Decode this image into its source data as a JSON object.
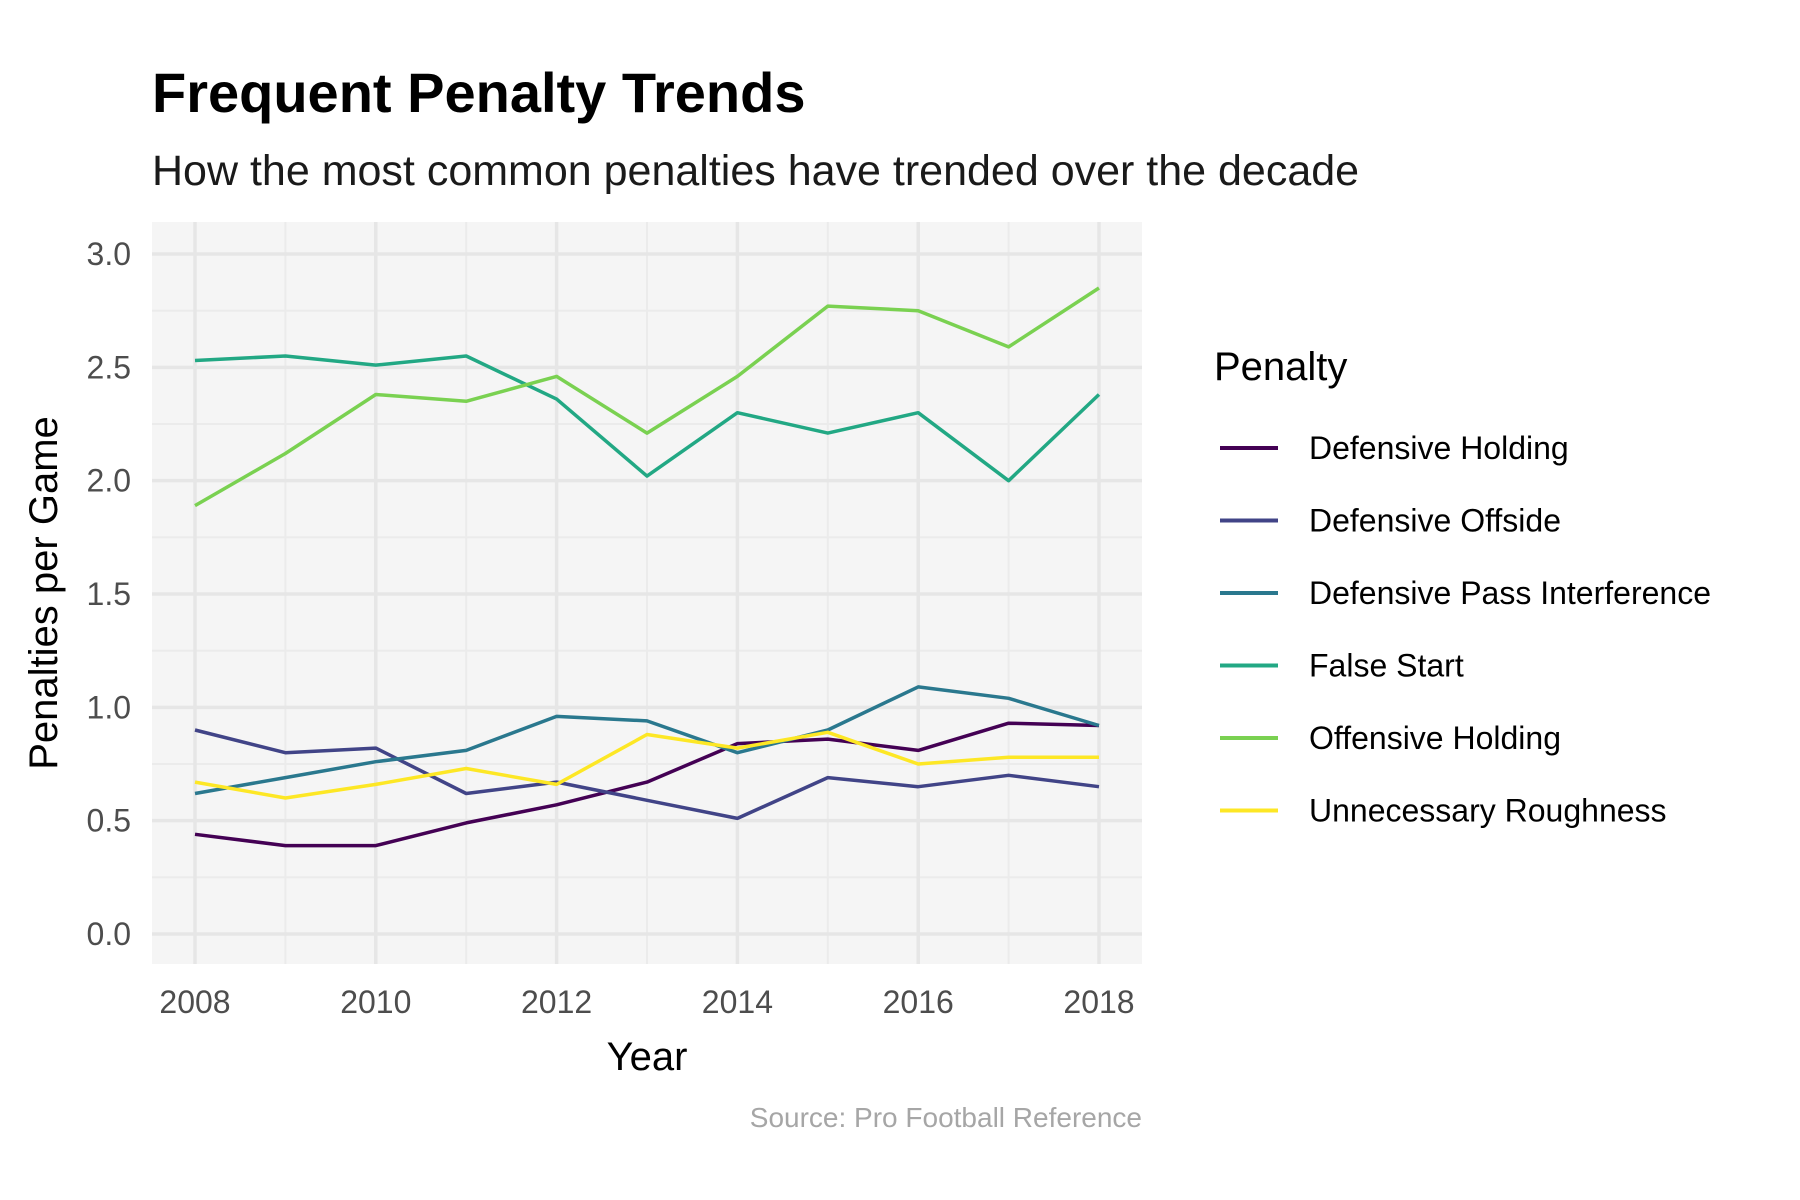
{
  "chart_data": {
    "type": "line",
    "title": "Frequent Penalty Trends",
    "subtitle": "How the most common penalties have trended over the decade",
    "xlabel": "Year",
    "ylabel": "Penalties per Game",
    "caption": "Source: Pro Football Reference",
    "legend_title": "Penalty",
    "legend_position": "right",
    "grid": true,
    "x": [
      2008,
      2009,
      2010,
      2011,
      2012,
      2013,
      2014,
      2015,
      2016,
      2017,
      2018
    ],
    "xlim": [
      2008,
      2018
    ],
    "ylim": [
      0,
      3
    ],
    "x_ticks": [
      "2008",
      "2010",
      "2012",
      "2014",
      "2016",
      "2018"
    ],
    "y_ticks": [
      "0.0",
      "0.5",
      "1.0",
      "1.5",
      "2.0",
      "2.5",
      "3.0"
    ],
    "series": [
      {
        "name": "Defensive Holding",
        "color": "#440154",
        "values": [
          0.44,
          0.39,
          0.39,
          0.49,
          0.57,
          0.67,
          0.84,
          0.86,
          0.81,
          0.93,
          0.92
        ]
      },
      {
        "name": "Defensive Offside",
        "color": "#414487",
        "values": [
          0.9,
          0.8,
          0.82,
          0.62,
          0.67,
          0.59,
          0.51,
          0.69,
          0.65,
          0.7,
          0.65
        ]
      },
      {
        "name": "Defensive Pass Interference",
        "color": "#2A788E",
        "values": [
          0.62,
          0.69,
          0.76,
          0.81,
          0.96,
          0.94,
          0.8,
          0.9,
          1.09,
          1.04,
          0.92
        ]
      },
      {
        "name": "False Start",
        "color": "#22A884",
        "values": [
          2.53,
          2.55,
          2.51,
          2.55,
          2.36,
          2.02,
          2.3,
          2.21,
          2.3,
          2.0,
          2.38
        ]
      },
      {
        "name": "Offensive Holding",
        "color": "#7AD151",
        "values": [
          1.89,
          2.12,
          2.38,
          2.35,
          2.46,
          2.21,
          2.46,
          2.77,
          2.75,
          2.59,
          2.85
        ]
      },
      {
        "name": "Unnecessary Roughness",
        "color": "#FDE725",
        "values": [
          0.67,
          0.6,
          0.66,
          0.73,
          0.66,
          0.88,
          0.82,
          0.89,
          0.75,
          0.78,
          0.78
        ]
      }
    ]
  }
}
